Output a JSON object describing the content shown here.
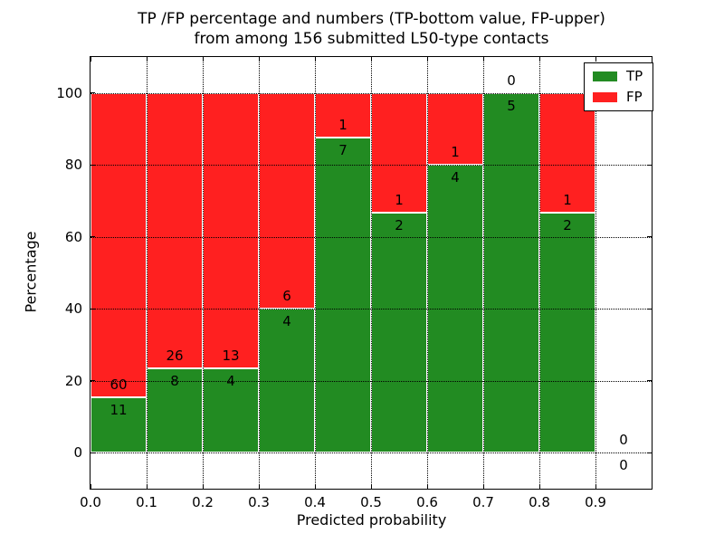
{
  "title": {
    "line1": "TP /FP percentage and numbers (TP-bottom value, FP-upper)",
    "line2": "from among 156 submitted L50-type contacts"
  },
  "colors": {
    "tp_green": "#228b22",
    "fp_red": "#ff2020",
    "grid": "#000000",
    "background": "#ffffff",
    "text": "#000000"
  },
  "chart_data": {
    "type": "bar",
    "stacked": true,
    "title": "TP /FP percentage and numbers (TP-bottom value, FP-upper)\nfrom among 156 submitted L50-type contacts",
    "xlabel": "Predicted probability",
    "ylabel": "Percentage",
    "total_contacts": 156,
    "xlim": [
      0.0,
      1.0
    ],
    "ylim": [
      -10,
      110
    ],
    "grid": true,
    "legend_position": "upper right",
    "x_ticks": [
      "0.0",
      "0.1",
      "0.2",
      "0.3",
      "0.4",
      "0.5",
      "0.6",
      "0.7",
      "0.8",
      "0.9"
    ],
    "y_ticks": [
      "0",
      "20",
      "40",
      "60",
      "80",
      "100"
    ],
    "y_tick_values": [
      0,
      20,
      40,
      60,
      80,
      100
    ],
    "legend": {
      "entries": [
        {
          "label": "TP",
          "color": "#228b22"
        },
        {
          "label": "FP",
          "color": "#ff2020"
        }
      ]
    },
    "bins": [
      {
        "range": [
          0.0,
          0.1
        ],
        "tp": 11,
        "fp": 60
      },
      {
        "range": [
          0.1,
          0.2
        ],
        "tp": 8,
        "fp": 26
      },
      {
        "range": [
          0.2,
          0.3
        ],
        "tp": 4,
        "fp": 13
      },
      {
        "range": [
          0.3,
          0.4
        ],
        "tp": 4,
        "fp": 6
      },
      {
        "range": [
          0.4,
          0.5
        ],
        "tp": 7,
        "fp": 1
      },
      {
        "range": [
          0.5,
          0.6
        ],
        "tp": 2,
        "fp": 1
      },
      {
        "range": [
          0.6,
          0.7
        ],
        "tp": 4,
        "fp": 1
      },
      {
        "range": [
          0.7,
          0.8
        ],
        "tp": 5,
        "fp": 0
      },
      {
        "range": [
          0.8,
          0.9
        ],
        "tp": 2,
        "fp": 1
      },
      {
        "range": [
          0.9,
          1.0
        ],
        "tp": 0,
        "fp": 0
      }
    ]
  }
}
